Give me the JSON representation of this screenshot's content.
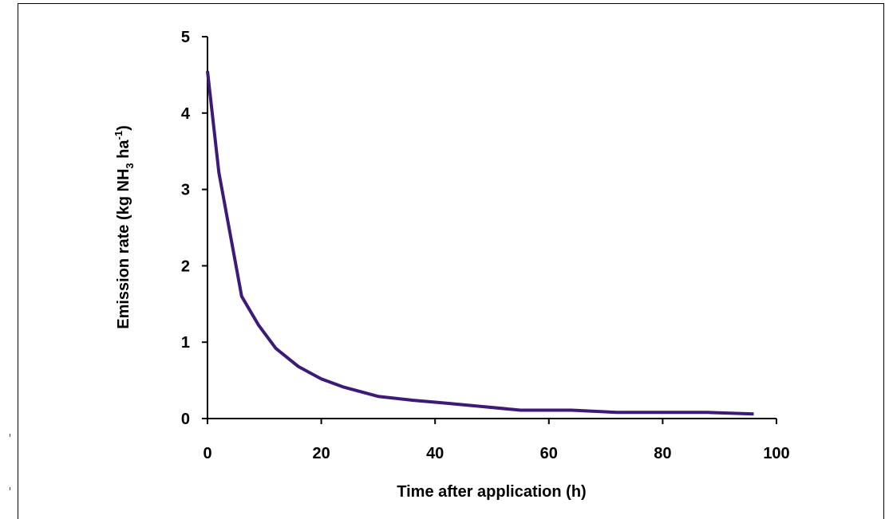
{
  "chart_data": {
    "type": "line",
    "xlabel": "Time after application (h)",
    "ylabel": {
      "prefix": "Emission rate (kg NH",
      "sub": "3",
      "middle": " ha",
      "sup": "-1",
      "suffix": ")"
    },
    "xlim": [
      0,
      100
    ],
    "ylim": [
      0,
      5
    ],
    "x_ticks": [
      "0",
      "20",
      "40",
      "60",
      "80",
      "100"
    ],
    "y_ticks": [
      "0",
      "1",
      "2",
      "3",
      "4",
      "5"
    ],
    "grid": false,
    "series": [
      {
        "color": "#3d1a78",
        "x": [
          0,
          2,
          6,
          9,
          12,
          16,
          20,
          24,
          30,
          36,
          42,
          48,
          55,
          64,
          72,
          80,
          88,
          96
        ],
        "y": [
          4.55,
          3.22,
          1.6,
          1.22,
          0.92,
          0.68,
          0.52,
          0.41,
          0.29,
          0.24,
          0.2,
          0.16,
          0.11,
          0.11,
          0.08,
          0.08,
          0.08,
          0.06
        ]
      }
    ]
  }
}
